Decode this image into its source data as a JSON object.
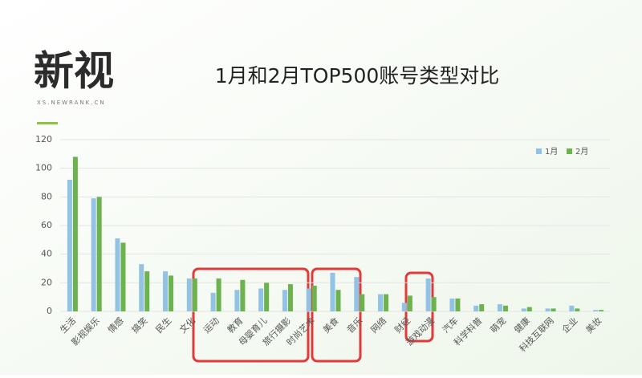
{
  "logo": {
    "name": "新视",
    "url": "XS.NEWRANK.CN"
  },
  "chart_data": {
    "type": "bar",
    "title": "1月和2月TOP500账号类型对比",
    "categories": [
      "生活",
      "影视娱乐",
      "情感",
      "搞笑",
      "民生",
      "文化",
      "运动",
      "教育",
      "母婴育儿",
      "旅行摄影",
      "时尚艺术",
      "美食",
      "音乐",
      "网络",
      "财经",
      "游戏动漫",
      "汽车",
      "科学科普",
      "萌宠",
      "健康",
      "科技互联网",
      "企业",
      "美妆"
    ],
    "series": [
      {
        "name": "1月",
        "color": "#92c2e4",
        "values": [
          92,
          79,
          51,
          33,
          28,
          23,
          13,
          15,
          16,
          15,
          16,
          27,
          24,
          12,
          6,
          23,
          9,
          4,
          5,
          2,
          2,
          4,
          1
        ]
      },
      {
        "name": "2月",
        "color": "#6cb24e",
        "values": [
          108,
          80,
          48,
          28,
          25,
          23,
          23,
          22,
          20,
          19,
          18,
          15,
          12,
          12,
          11,
          10,
          9,
          5,
          4,
          3,
          2,
          2,
          1
        ]
      }
    ],
    "ylim": [
      0,
      120
    ],
    "yticks": [
      0,
      20,
      40,
      60,
      80,
      100,
      120
    ],
    "grid": true,
    "legend": "top-right"
  }
}
